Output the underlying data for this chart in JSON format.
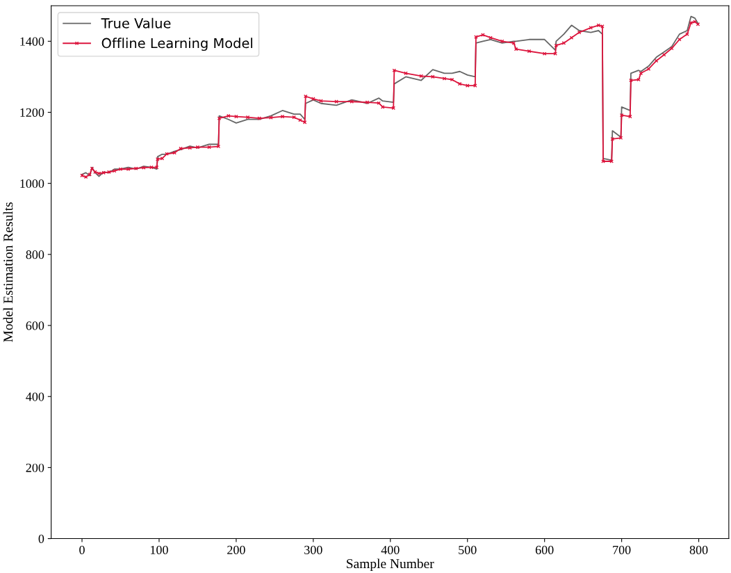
{
  "chart_data": {
    "type": "line",
    "xlabel": "Sample Number",
    "ylabel": "Model Estimation Results",
    "xlim": [
      -40,
      839
    ],
    "xticks": [
      0,
      100,
      200,
      300,
      400,
      500,
      600,
      700,
      800
    ],
    "ylim": [
      0,
      1500
    ],
    "yticks": [
      0,
      200,
      400,
      600,
      800,
      1000,
      1200,
      1400
    ],
    "grid": false,
    "legend": "top left",
    "series": [
      {
        "name": "True Value",
        "color": "#666666",
        "marker": "none",
        "x": [
          0,
          5,
          10,
          13,
          17,
          22,
          28,
          35,
          42,
          50,
          60,
          70,
          80,
          90,
          97,
          98,
          104,
          110,
          120,
          128,
          140,
          150,
          165,
          177,
          178,
          190,
          200,
          215,
          230,
          245,
          260,
          275,
          283,
          289,
          290,
          300,
          310,
          330,
          350,
          370,
          385,
          390,
          404,
          405,
          420,
          440,
          455,
          470,
          480,
          490,
          500,
          510,
          511,
          520,
          530,
          545,
          560,
          563,
          580,
          600,
          614,
          615,
          625,
          635,
          645,
          660,
          670,
          675,
          676,
          687,
          688,
          699,
          700,
          711,
          712,
          722,
          725,
          735,
          745,
          755,
          765,
          775,
          785,
          790,
          795,
          799
        ],
        "values": [
          1025,
          1030,
          1022,
          1045,
          1030,
          1020,
          1032,
          1030,
          1040,
          1040,
          1045,
          1040,
          1048,
          1045,
          1040,
          1075,
          1082,
          1082,
          1090,
          1095,
          1105,
          1100,
          1110,
          1110,
          1190,
          1180,
          1170,
          1180,
          1180,
          1190,
          1205,
          1195,
          1195,
          1180,
          1225,
          1235,
          1225,
          1220,
          1235,
          1225,
          1240,
          1232,
          1228,
          1280,
          1300,
          1290,
          1320,
          1310,
          1310,
          1315,
          1305,
          1300,
          1395,
          1400,
          1405,
          1395,
          1400,
          1400,
          1405,
          1405,
          1375,
          1400,
          1420,
          1445,
          1430,
          1425,
          1430,
          1420,
          1070,
          1065,
          1148,
          1130,
          1215,
          1205,
          1310,
          1318,
          1315,
          1330,
          1355,
          1370,
          1385,
          1420,
          1430,
          1470,
          1465,
          1450
        ]
      },
      {
        "name": "Offline Learning Model",
        "color": "#dc143c",
        "marker": "cross",
        "x": [
          0,
          5,
          10,
          13,
          17,
          22,
          28,
          35,
          42,
          50,
          60,
          70,
          80,
          90,
          97,
          98,
          104,
          110,
          120,
          128,
          140,
          150,
          165,
          177,
          178,
          190,
          200,
          215,
          230,
          245,
          260,
          275,
          283,
          289,
          290,
          300,
          310,
          330,
          350,
          370,
          385,
          390,
          404,
          405,
          420,
          440,
          455,
          470,
          480,
          490,
          500,
          510,
          511,
          520,
          530,
          545,
          560,
          563,
          580,
          600,
          614,
          615,
          625,
          635,
          645,
          660,
          670,
          675,
          676,
          687,
          688,
          699,
          700,
          711,
          712,
          722,
          725,
          735,
          745,
          755,
          765,
          775,
          785,
          790,
          795,
          799
        ],
        "values": [
          1022,
          1018,
          1025,
          1042,
          1032,
          1028,
          1030,
          1032,
          1035,
          1040,
          1040,
          1042,
          1044,
          1045,
          1045,
          1068,
          1070,
          1083,
          1086,
          1098,
          1100,
          1102,
          1102,
          1104,
          1183,
          1190,
          1188,
          1186,
          1183,
          1185,
          1188,
          1186,
          1178,
          1172,
          1245,
          1238,
          1232,
          1230,
          1230,
          1228,
          1226,
          1215,
          1212,
          1318,
          1310,
          1302,
          1300,
          1295,
          1292,
          1280,
          1275,
          1275,
          1412,
          1418,
          1410,
          1400,
          1395,
          1378,
          1372,
          1365,
          1365,
          1388,
          1395,
          1410,
          1425,
          1438,
          1445,
          1442,
          1062,
          1062,
          1125,
          1128,
          1192,
          1188,
          1290,
          1292,
          1310,
          1322,
          1345,
          1362,
          1380,
          1405,
          1420,
          1452,
          1455,
          1448
        ]
      }
    ]
  }
}
